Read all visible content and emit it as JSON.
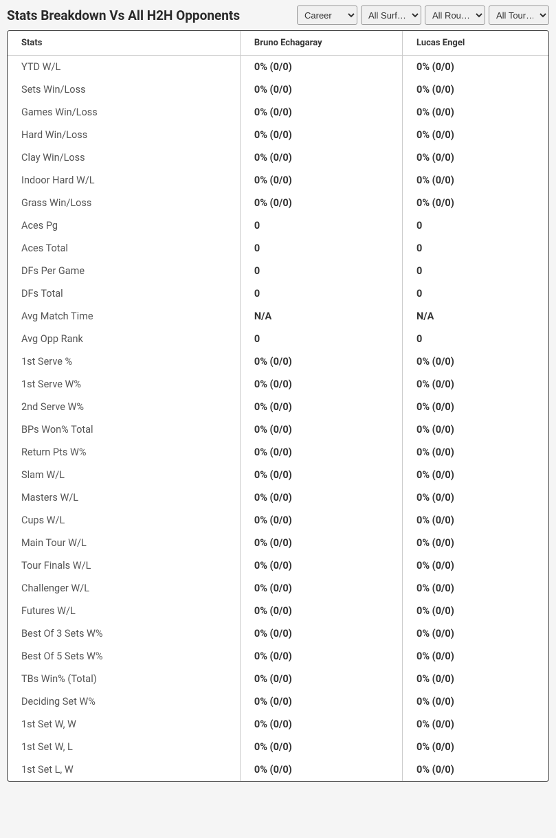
{
  "header": {
    "title": "Stats Breakdown Vs All H2H Opponents"
  },
  "filters": {
    "career": {
      "selected": "Career",
      "options": [
        "Career"
      ]
    },
    "surface": {
      "selected": "All Surf…",
      "options": [
        "All Surf…"
      ]
    },
    "round": {
      "selected": "All Rou…",
      "options": [
        "All Rou…"
      ]
    },
    "tour": {
      "selected": "All Tour…",
      "options": [
        "All Tour…"
      ]
    }
  },
  "table": {
    "columns": {
      "stats": "Stats",
      "player1": "Bruno Echagaray",
      "player2": "Lucas Engel"
    },
    "rows": [
      {
        "stat": "YTD W/L",
        "p1": "0% (0/0)",
        "p2": "0% (0/0)"
      },
      {
        "stat": "Sets Win/Loss",
        "p1": "0% (0/0)",
        "p2": "0% (0/0)"
      },
      {
        "stat": "Games Win/Loss",
        "p1": "0% (0/0)",
        "p2": "0% (0/0)"
      },
      {
        "stat": "Hard Win/Loss",
        "p1": "0% (0/0)",
        "p2": "0% (0/0)"
      },
      {
        "stat": "Clay Win/Loss",
        "p1": "0% (0/0)",
        "p2": "0% (0/0)"
      },
      {
        "stat": "Indoor Hard W/L",
        "p1": "0% (0/0)",
        "p2": "0% (0/0)"
      },
      {
        "stat": "Grass Win/Loss",
        "p1": "0% (0/0)",
        "p2": "0% (0/0)"
      },
      {
        "stat": "Aces Pg",
        "p1": "0",
        "p2": "0"
      },
      {
        "stat": "Aces Total",
        "p1": "0",
        "p2": "0"
      },
      {
        "stat": "DFs Per Game",
        "p1": "0",
        "p2": "0"
      },
      {
        "stat": "DFs Total",
        "p1": "0",
        "p2": "0"
      },
      {
        "stat": "Avg Match Time",
        "p1": "N/A",
        "p2": "N/A"
      },
      {
        "stat": "Avg Opp Rank",
        "p1": "0",
        "p2": "0"
      },
      {
        "stat": "1st Serve %",
        "p1": "0% (0/0)",
        "p2": "0% (0/0)"
      },
      {
        "stat": "1st Serve W%",
        "p1": "0% (0/0)",
        "p2": "0% (0/0)"
      },
      {
        "stat": "2nd Serve W%",
        "p1": "0% (0/0)",
        "p2": "0% (0/0)"
      },
      {
        "stat": "BPs Won% Total",
        "p1": "0% (0/0)",
        "p2": "0% (0/0)"
      },
      {
        "stat": "Return Pts W%",
        "p1": "0% (0/0)",
        "p2": "0% (0/0)"
      },
      {
        "stat": "Slam W/L",
        "p1": "0% (0/0)",
        "p2": "0% (0/0)"
      },
      {
        "stat": "Masters W/L",
        "p1": "0% (0/0)",
        "p2": "0% (0/0)"
      },
      {
        "stat": "Cups W/L",
        "p1": "0% (0/0)",
        "p2": "0% (0/0)"
      },
      {
        "stat": "Main Tour W/L",
        "p1": "0% (0/0)",
        "p2": "0% (0/0)"
      },
      {
        "stat": "Tour Finals W/L",
        "p1": "0% (0/0)",
        "p2": "0% (0/0)"
      },
      {
        "stat": "Challenger W/L",
        "p1": "0% (0/0)",
        "p2": "0% (0/0)"
      },
      {
        "stat": "Futures W/L",
        "p1": "0% (0/0)",
        "p2": "0% (0/0)"
      },
      {
        "stat": "Best Of 3 Sets W%",
        "p1": "0% (0/0)",
        "p2": "0% (0/0)"
      },
      {
        "stat": "Best Of 5 Sets W%",
        "p1": "0% (0/0)",
        "p2": "0% (0/0)"
      },
      {
        "stat": "TBs Win% (Total)",
        "p1": "0% (0/0)",
        "p2": "0% (0/0)"
      },
      {
        "stat": "Deciding Set W%",
        "p1": "0% (0/0)",
        "p2": "0% (0/0)"
      },
      {
        "stat": "1st Set W, W",
        "p1": "0% (0/0)",
        "p2": "0% (0/0)"
      },
      {
        "stat": "1st Set W, L",
        "p1": "0% (0/0)",
        "p2": "0% (0/0)"
      },
      {
        "stat": "1st Set L, W",
        "p1": "0% (0/0)",
        "p2": "0% (0/0)"
      }
    ]
  }
}
